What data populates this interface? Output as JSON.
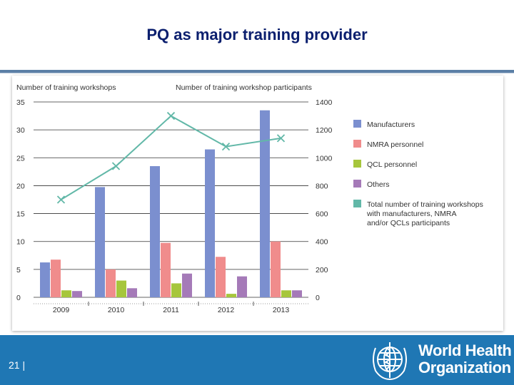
{
  "slide": {
    "title": "PQ as major training provider",
    "page_number": "21 |",
    "org_line1": "World Health",
    "org_line2": "Organization"
  },
  "colors": {
    "manufacturers": "#7b8fcf",
    "nmra": "#f08c8c",
    "qcl": "#a6c63c",
    "others": "#a57ab8",
    "total_line": "#62b8a8",
    "footer": "#1f77b4"
  },
  "chart_data": {
    "type": "bar",
    "categories": [
      "2009",
      "2010",
      "2011",
      "2012",
      "2013"
    ],
    "y_left": {
      "label": "Number of training workshops",
      "range": [
        0,
        35
      ],
      "ticks": [
        0,
        5,
        10,
        15,
        20,
        25,
        30,
        35
      ]
    },
    "y_right": {
      "label": "Number of training workshop participants",
      "range": [
        0,
        1400
      ],
      "ticks": [
        0,
        200,
        400,
        600,
        800,
        1000,
        1200,
        1400
      ]
    },
    "series": [
      {
        "name": "Manufacturers",
        "axis": "right",
        "values": [
          250,
          790,
          940,
          1060,
          1340
        ]
      },
      {
        "name": "NMRA personnel",
        "axis": "right",
        "values": [
          270,
          200,
          390,
          290,
          400
        ]
      },
      {
        "name": "QCL personnel",
        "axis": "right",
        "values": [
          50,
          120,
          100,
          25,
          50
        ]
      },
      {
        "name": "Others",
        "axis": "right",
        "values": [
          45,
          65,
          170,
          150,
          50
        ]
      }
    ],
    "line": {
      "name": "Total number of training workshops with manufacturers, NMRA and/or QCLs participants",
      "axis": "left",
      "values": [
        17.5,
        23.5,
        32.5,
        27,
        28.5
      ]
    },
    "legend_lines": [
      "Total number of training workshops",
      "with manufacturers, NMRA",
      "and/or QCLs participants"
    ],
    "legend_position": "right",
    "grid": true
  }
}
